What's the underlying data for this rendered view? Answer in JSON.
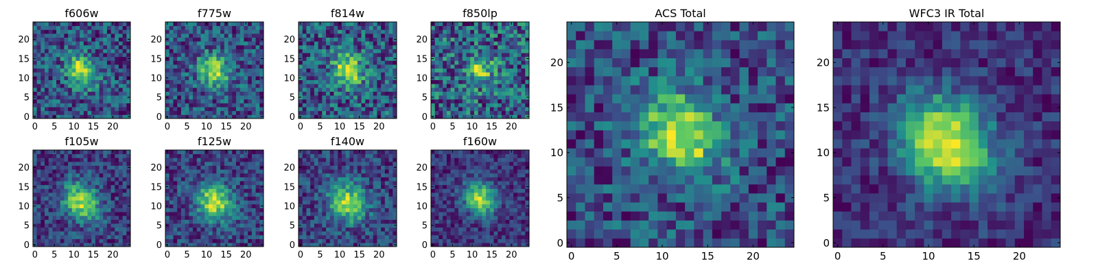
{
  "figure": {
    "colormap": "viridis",
    "colormap_stops": [
      "#440154",
      "#3b528b",
      "#21918c",
      "#5ec962",
      "#fde725"
    ]
  },
  "chart_data": [
    {
      "type": "heatmap",
      "title": "f606w",
      "grid": [
        25,
        25
      ],
      "x_ticks": [
        0,
        5,
        10,
        15,
        20
      ],
      "y_ticks": [
        0,
        5,
        10,
        15,
        20
      ],
      "xlim": [
        0,
        25
      ],
      "ylim": [
        0,
        25
      ],
      "peak": [
        12,
        12
      ],
      "peak_value": 1.0,
      "width": 2.6,
      "background": 0.42,
      "noise": 0.22
    },
    {
      "type": "heatmap",
      "title": "f775w",
      "grid": [
        25,
        25
      ],
      "x_ticks": [
        0,
        5,
        10,
        15,
        20
      ],
      "y_ticks": [
        0,
        5,
        10,
        15,
        20
      ],
      "xlim": [
        0,
        25
      ],
      "ylim": [
        0,
        25
      ],
      "peak": [
        12,
        12
      ],
      "peak_value": 1.0,
      "width": 2.8,
      "background": 0.45,
      "noise": 0.24
    },
    {
      "type": "heatmap",
      "title": "f814w",
      "grid": [
        25,
        25
      ],
      "x_ticks": [
        0,
        5,
        10,
        15,
        20
      ],
      "y_ticks": [
        0,
        5,
        10,
        15,
        20
      ],
      "xlim": [
        0,
        25
      ],
      "ylim": [
        0,
        25
      ],
      "peak": [
        12,
        12
      ],
      "peak_value": 1.0,
      "width": 2.8,
      "background": 0.45,
      "noise": 0.24
    },
    {
      "type": "heatmap",
      "title": "f850lp",
      "grid": [
        25,
        25
      ],
      "x_ticks": [
        0,
        5,
        10,
        15,
        20
      ],
      "y_ticks": [
        0,
        5,
        10,
        15,
        20
      ],
      "xlim": [
        0,
        25
      ],
      "ylim": [
        0,
        25
      ],
      "peak": [
        12,
        12
      ],
      "peak_value": 0.9,
      "width": 2.6,
      "background": 0.52,
      "noise": 0.3
    },
    {
      "type": "heatmap",
      "title": "f105w",
      "grid": [
        25,
        25
      ],
      "x_ticks": [
        0,
        5,
        10,
        15,
        20
      ],
      "y_ticks": [
        0,
        5,
        10,
        15,
        20
      ],
      "xlim": [
        0,
        25
      ],
      "ylim": [
        0,
        25
      ],
      "peak": [
        12,
        11
      ],
      "peak_value": 1.0,
      "width": 3.2,
      "background": 0.35,
      "noise": 0.18
    },
    {
      "type": "heatmap",
      "title": "f125w",
      "grid": [
        25,
        25
      ],
      "x_ticks": [
        0,
        5,
        10,
        15,
        20
      ],
      "y_ticks": [
        0,
        5,
        10,
        15,
        20
      ],
      "xlim": [
        0,
        25
      ],
      "ylim": [
        0,
        25
      ],
      "peak": [
        12,
        11
      ],
      "peak_value": 1.0,
      "width": 3.2,
      "background": 0.38,
      "noise": 0.18
    },
    {
      "type": "heatmap",
      "title": "f140w",
      "grid": [
        25,
        25
      ],
      "x_ticks": [
        0,
        5,
        10,
        15,
        20
      ],
      "y_ticks": [
        0,
        5,
        10,
        15,
        20
      ],
      "xlim": [
        0,
        25
      ],
      "ylim": [
        0,
        25
      ],
      "peak": [
        12,
        11
      ],
      "peak_value": 1.0,
      "width": 3.3,
      "background": 0.4,
      "noise": 0.18
    },
    {
      "type": "heatmap",
      "title": "f160w",
      "grid": [
        25,
        25
      ],
      "x_ticks": [
        0,
        5,
        10,
        15,
        20
      ],
      "y_ticks": [
        0,
        5,
        10,
        15,
        20
      ],
      "xlim": [
        0,
        25
      ],
      "ylim": [
        0,
        25
      ],
      "peak": [
        12,
        12
      ],
      "peak_value": 1.0,
      "width": 2.8,
      "background": 0.3,
      "noise": 0.16
    },
    {
      "type": "heatmap",
      "title": "ACS Total",
      "grid": [
        25,
        25
      ],
      "x_ticks": [
        0,
        5,
        10,
        15,
        20
      ],
      "y_ticks": [
        0,
        5,
        10,
        15,
        20
      ],
      "xlim": [
        0,
        25
      ],
      "ylim": [
        0,
        25
      ],
      "peak": [
        12,
        12
      ],
      "peak_value": 1.0,
      "width": 3.0,
      "background": 0.38,
      "noise": 0.2
    },
    {
      "type": "heatmap",
      "title": "WFC3 IR Total",
      "grid": [
        25,
        25
      ],
      "x_ticks": [
        0,
        5,
        10,
        15,
        20
      ],
      "y_ticks": [
        0,
        5,
        10,
        15,
        20
      ],
      "xlim": [
        0,
        25
      ],
      "ylim": [
        0,
        25
      ],
      "peak": [
        12,
        11
      ],
      "peak_value": 1.0,
      "width": 3.4,
      "background": 0.3,
      "noise": 0.12
    }
  ]
}
